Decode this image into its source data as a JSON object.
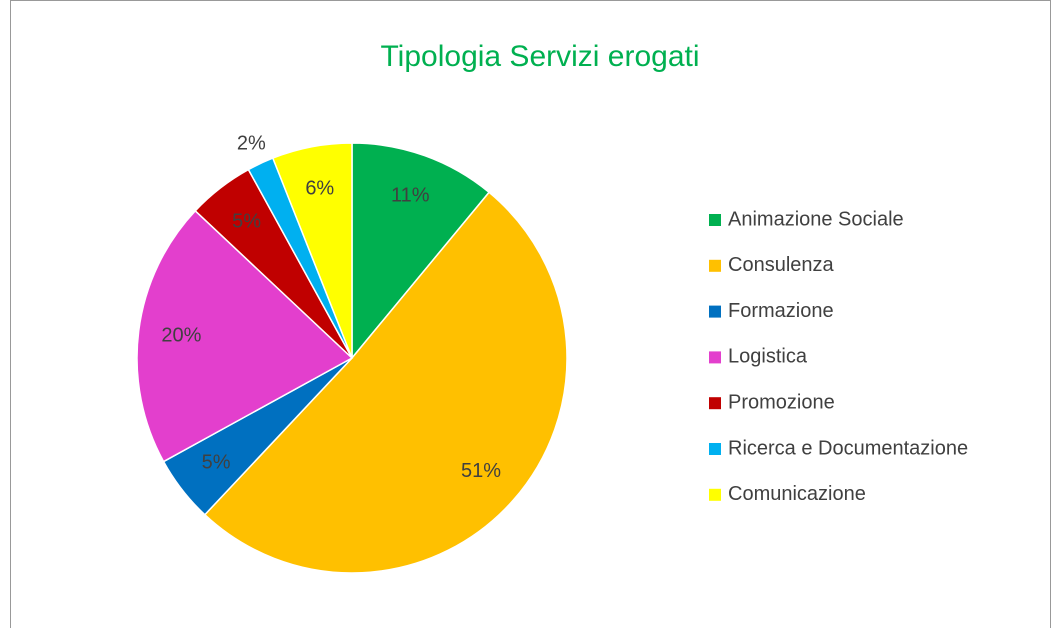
{
  "chart_data": {
    "type": "pie",
    "title": "Tipologia Servizi erogati",
    "categories": [
      "Animazione Sociale",
      "Consulenza",
      "Formazione",
      "Logistica",
      "Promozione",
      "Ricerca e Documentazione",
      "Comunicazione"
    ],
    "values": [
      11,
      51,
      5,
      20,
      5,
      2,
      6
    ],
    "value_labels": [
      "11%",
      "51%",
      "5%",
      "20%",
      "5%",
      "2%",
      "6%"
    ],
    "colors": [
      "#00b050",
      "#ffc000",
      "#0070c0",
      "#e33fcd",
      "#c00000",
      "#00b0f0",
      "#ffff00"
    ],
    "legend": "right"
  }
}
